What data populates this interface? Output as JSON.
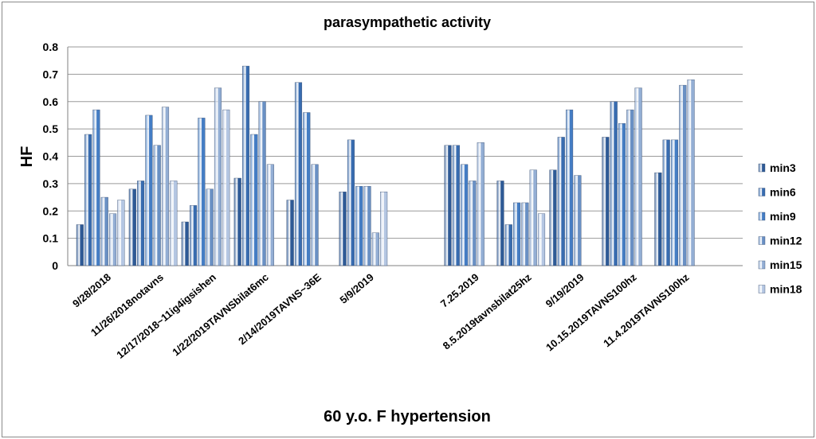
{
  "chart_data": {
    "type": "bar",
    "title": "parasympathetic activity",
    "xlabel": "60 y.o. F hypertension",
    "ylabel": "HF",
    "ylim": [
      0,
      0.8
    ],
    "yticks": [
      "0",
      "0.1",
      "0.2",
      "0.3",
      "0.4",
      "0.5",
      "0.6",
      "0.7",
      "0.8"
    ],
    "grid": true,
    "legend_position": "right",
    "categories": [
      "9/28/2018",
      "11/26/2018notavns",
      "12/17/2018~11ig4igsishen",
      "1/22/2019TAVNSbilat6mc",
      "2/14/2019TAVNS~36E",
      "5/9/2019",
      "",
      "7.25.2019",
      "8.5.2019tavnsbilat25hz",
      "9/19/2019",
      "10.15.2019TAVNS100hz",
      "11.4.2019TAVNS100hz"
    ],
    "series": [
      {
        "name": "min3",
        "color": "#2e5a96",
        "values": [
          0.15,
          0.28,
          0.16,
          0.32,
          0.24,
          0.27,
          null,
          0.44,
          0.31,
          0.35,
          0.47,
          0.34
        ]
      },
      {
        "name": "min6",
        "color": "#386cb0",
        "values": [
          0.48,
          0.31,
          0.22,
          0.73,
          0.67,
          0.46,
          null,
          0.44,
          0.15,
          0.47,
          0.6,
          0.46
        ]
      },
      {
        "name": "min9",
        "color": "#447dc4",
        "values": [
          0.57,
          0.55,
          0.54,
          0.48,
          0.56,
          0.29,
          null,
          0.37,
          0.23,
          0.57,
          0.52,
          0.46
        ]
      },
      {
        "name": "min12",
        "color": "#6990c4",
        "values": [
          0.25,
          0.44,
          0.28,
          0.6,
          0.37,
          0.29,
          null,
          0.31,
          0.23,
          0.33,
          0.57,
          0.66
        ]
      },
      {
        "name": "min15",
        "color": "#93aed4",
        "values": [
          0.19,
          0.58,
          0.65,
          0.37,
          null,
          0.12,
          null,
          0.45,
          0.35,
          null,
          0.65,
          0.68
        ]
      },
      {
        "name": "min18",
        "color": "#b4c6e2",
        "values": [
          0.24,
          0.31,
          0.57,
          null,
          null,
          0.27,
          null,
          null,
          0.19,
          null,
          null,
          null
        ]
      }
    ]
  }
}
